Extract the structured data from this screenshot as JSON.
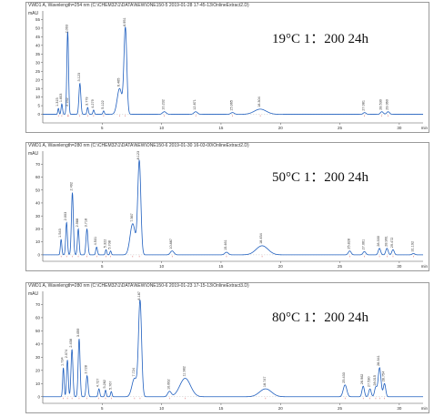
{
  "chart_data": [
    {
      "type": "line",
      "header": "VWD1 A, Wavelength=254 nm (C:\\CHEM32\\1\\DATA\\NEW\\ONE150-5 2019-01-28 17-45-13\\OnlineExtract2.D)",
      "condition": "19°C 1：200 24h",
      "ylabel": "mAU",
      "xlabel": "min",
      "xlim": [
        0,
        32
      ],
      "ylim": [
        -5,
        60
      ],
      "y_ticks": [
        0,
        5,
        10,
        15,
        20,
        25,
        30,
        35,
        40,
        45,
        50,
        55
      ],
      "x_ticks": [
        5,
        10,
        15,
        20,
        25,
        30
      ],
      "baseline": 0,
      "peaks": [
        {
          "rt": "1.315",
          "x": 1.315,
          "h": 3.5,
          "w": 0.05
        },
        {
          "rt": "1.603",
          "x": 1.603,
          "h": 6.0,
          "w": 0.06
        },
        {
          "rt": "2.152",
          "x": 2.152,
          "h": 3.5,
          "w": 0.06
        },
        {
          "rt": "2.093",
          "x": 2.093,
          "h": 46,
          "w": 0.07
        },
        {
          "rt": "3.123",
          "x": 3.123,
          "h": 18,
          "w": 0.08
        },
        {
          "rt": "3.779",
          "x": 3.779,
          "h": 4,
          "w": 0.06
        },
        {
          "rt": "4.279",
          "x": 4.279,
          "h": 2.5,
          "w": 0.06
        },
        {
          "rt": "5.122",
          "x": 5.122,
          "h": 2,
          "w": 0.06
        },
        {
          "rt": "6.465",
          "x": 6.465,
          "h": 15,
          "w": 0.2
        },
        {
          "rt": "6.951",
          "x": 6.951,
          "h": 50,
          "w": 0.12
        },
        {
          "rt": "10.232",
          "x": 10.232,
          "h": 1.5,
          "w": 0.15
        },
        {
          "rt": "12.871",
          "x": 12.871,
          "h": 1.5,
          "w": 0.15
        },
        {
          "rt": "15.965",
          "x": 15.965,
          "h": 1.0,
          "w": 0.15
        },
        {
          "rt": "18.304",
          "x": 18.304,
          "h": 3,
          "w": 0.5
        },
        {
          "rt": "27.081",
          "x": 27.081,
          "h": 1.0,
          "w": 0.12
        },
        {
          "rt": "28.530",
          "x": 28.53,
          "h": 1.5,
          "w": 0.12
        },
        {
          "rt": "29.060",
          "x": 29.06,
          "h": 1.5,
          "w": 0.12
        }
      ]
    },
    {
      "type": "line",
      "header": "VWD1 A, Wavelength=280 nm (C:\\CHEM32\\1\\DATA\\NEW\\ONE150-6 2019-01-30 16-03-00\\OnlineExtract2.D)",
      "condition": "50°C 1：200 24h",
      "ylabel": "mAU",
      "xlabel": "min",
      "xlim": [
        0,
        32
      ],
      "ylim": [
        -5,
        80
      ],
      "y_ticks": [
        0,
        10,
        20,
        30,
        40,
        50,
        60,
        70
      ],
      "x_ticks": [
        5,
        10,
        15,
        20,
        25,
        30
      ],
      "baseline": 0,
      "peaks": [
        {
          "rt": "1.543",
          "x": 1.543,
          "h": 12,
          "w": 0.06
        },
        {
          "rt": "2.003",
          "x": 2.003,
          "h": 25,
          "w": 0.07
        },
        {
          "rt": "2.492",
          "x": 2.492,
          "h": 48,
          "w": 0.08
        },
        {
          "rt": "2.988",
          "x": 2.988,
          "h": 20,
          "w": 0.07
        },
        {
          "rt": "3.718",
          "x": 3.718,
          "h": 20,
          "w": 0.08
        },
        {
          "rt": "4.531",
          "x": 4.531,
          "h": 6,
          "w": 0.07
        },
        {
          "rt": "5.322",
          "x": 5.322,
          "h": 4,
          "w": 0.06
        },
        {
          "rt": "5.708",
          "x": 5.708,
          "h": 3,
          "w": 0.06
        },
        {
          "rt": "7.567",
          "x": 7.567,
          "h": 24,
          "w": 0.22
        },
        {
          "rt": "8.123",
          "x": 8.123,
          "h": 72,
          "w": 0.13
        },
        {
          "rt": "10.887",
          "x": 10.887,
          "h": 3,
          "w": 0.15
        },
        {
          "rt": "15.461",
          "x": 15.461,
          "h": 2,
          "w": 0.15
        },
        {
          "rt": "18.454",
          "x": 18.454,
          "h": 7,
          "w": 0.5
        },
        {
          "rt": "25.828",
          "x": 25.828,
          "h": 3,
          "w": 0.12
        },
        {
          "rt": "27.061",
          "x": 27.061,
          "h": 2.5,
          "w": 0.12
        },
        {
          "rt": "28.330",
          "x": 28.33,
          "h": 5,
          "w": 0.1
        },
        {
          "rt": "28.961",
          "x": 28.961,
          "h": 5,
          "w": 0.1
        },
        {
          "rt": "29.472",
          "x": 29.472,
          "h": 4,
          "w": 0.1
        },
        {
          "rt": "31.192",
          "x": 31.192,
          "h": 1.0,
          "w": 0.12
        }
      ]
    },
    {
      "type": "line",
      "header": "VWD1 A, Wavelength=280 nm (C:\\CHEM32\\1\\DATA\\NEW\\ONE150-6 2019-01-23 17-15-13\\OnlineExtract3.D)",
      "condition": "80°C 1：200 24h",
      "ylabel": "mAU",
      "xlabel": "min",
      "xlim": [
        0,
        32
      ],
      "ylim": [
        -5,
        80
      ],
      "y_ticks": [
        0,
        10,
        20,
        30,
        40,
        50,
        60,
        70
      ],
      "x_ticks": [
        5,
        10,
        15,
        20,
        25,
        30
      ],
      "baseline": 0,
      "peaks": [
        {
          "rt": "1.734",
          "x": 1.734,
          "h": 22,
          "w": 0.06
        },
        {
          "rt": "2.074",
          "x": 2.074,
          "h": 28,
          "w": 0.07
        },
        {
          "rt": "2.458",
          "x": 2.458,
          "h": 36,
          "w": 0.08
        },
        {
          "rt": "3.059",
          "x": 3.059,
          "h": 44,
          "w": 0.08
        },
        {
          "rt": "3.728",
          "x": 3.728,
          "h": 16,
          "w": 0.08
        },
        {
          "rt": "4.727",
          "x": 4.727,
          "h": 6,
          "w": 0.07
        },
        {
          "rt": "5.282",
          "x": 5.282,
          "h": 5,
          "w": 0.06
        },
        {
          "rt": "5.767",
          "x": 5.767,
          "h": 4,
          "w": 0.06
        },
        {
          "rt": "7.724",
          "x": 7.724,
          "h": 14,
          "w": 0.22
        },
        {
          "rt": "8.187",
          "x": 8.187,
          "h": 72,
          "w": 0.13
        },
        {
          "rt": "10.662",
          "x": 10.662,
          "h": 4,
          "w": 0.15
        },
        {
          "rt": "11.982",
          "x": 11.982,
          "h": 14,
          "w": 0.45
        },
        {
          "rt": "18.747",
          "x": 18.747,
          "h": 6,
          "w": 0.5
        },
        {
          "rt": "25.433",
          "x": 25.433,
          "h": 9,
          "w": 0.15
        },
        {
          "rt": "26.962",
          "x": 26.962,
          "h": 8,
          "w": 0.1
        },
        {
          "rt": "27.530",
          "x": 27.53,
          "h": 6,
          "w": 0.1
        },
        {
          "rt": "28.015",
          "x": 28.015,
          "h": 7,
          "w": 0.1
        },
        {
          "rt": "28.341",
          "x": 28.341,
          "h": 22,
          "w": 0.12
        },
        {
          "rt": "28.754",
          "x": 28.754,
          "h": 10,
          "w": 0.1
        }
      ]
    }
  ]
}
